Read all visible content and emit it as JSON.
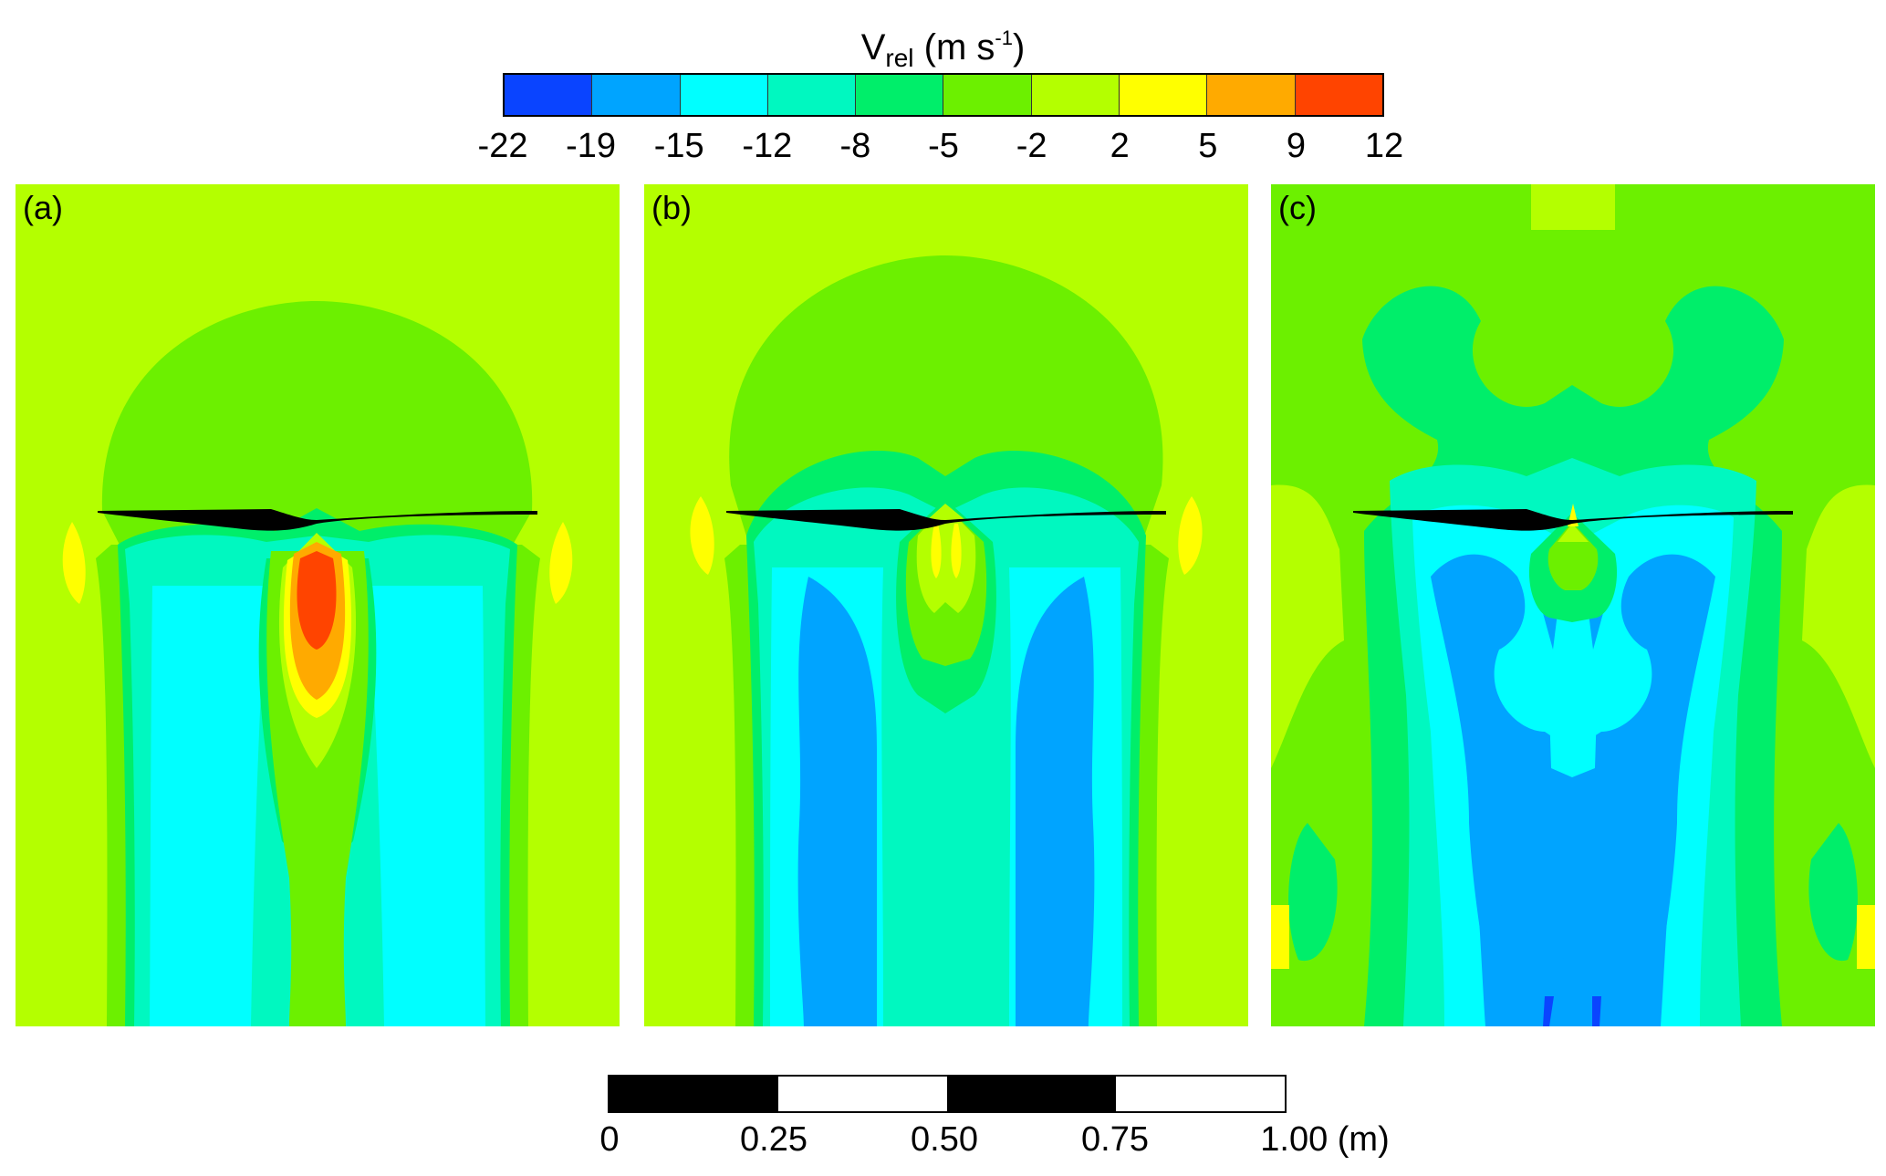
{
  "colorbar": {
    "label_main": "V",
    "label_sub": "rel",
    "label_unit": " (m s",
    "label_sup": "-1",
    "label_close": ")",
    "ticks": [
      "-22",
      "-19",
      "-15",
      "-12",
      "-8",
      "-5",
      "-2",
      "2",
      "5",
      "9",
      "12"
    ],
    "colors": [
      "#0a44ff",
      "#00a4ff",
      "#00ffff",
      "#00f8c0",
      "#00ee6a",
      "#6cf000",
      "#b4ff00",
      "#ffff00",
      "#ffaa00",
      "#ff4400"
    ]
  },
  "panels": [
    {
      "label": "(a)"
    },
    {
      "label": "(b)"
    },
    {
      "label": "(c)"
    }
  ],
  "scale_bar": {
    "ticks": [
      "0",
      "0.25",
      "0.50",
      "0.75",
      "1.00 (m)"
    ],
    "colors": [
      "#000000",
      "#ffffff",
      "#000000",
      "#ffffff"
    ]
  }
}
